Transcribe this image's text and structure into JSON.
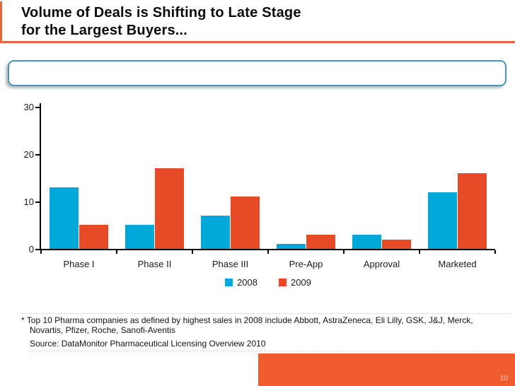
{
  "slide": {
    "title": "Volume of Deals is Shifting to Late Stage\nfor the Largest Buyers...",
    "page_number": "10",
    "footnote_line1": "* Top 10 Pharma companies as defined by highest sales in 2008 include Abbott, AstraZeneca, Eli Lilly, GSK, J&J, Merck, Novartis, Pfizer, Roche, Sanofi-Aventis",
    "footnote_source": "Source: DataMonitor Pharmaceutical Licensing Overview 2010"
  },
  "colors": {
    "accent_orange": "#E26740",
    "footer_bar_orange": "#F05C2E",
    "series_2008_blue": "#00A9D8",
    "series_2009_orange": "#E74A26",
    "placeholder_border_teal": "#4695B5"
  },
  "chart_data": {
    "type": "bar",
    "title": "",
    "xlabel": "",
    "ylabel": "",
    "categories": [
      "Phase I",
      "Phase II",
      "Phase III",
      "Pre-App",
      "Approval",
      "Marketed"
    ],
    "series": [
      {
        "name": "2008",
        "color": "#00A9D8",
        "values": [
          13,
          5,
          7,
          1,
          3,
          12
        ]
      },
      {
        "name": "2009",
        "color": "#E74A26",
        "values": [
          5,
          17,
          11,
          3,
          2,
          16
        ]
      }
    ],
    "ylim": [
      0,
      30
    ],
    "yticks": [
      0,
      10,
      20,
      30
    ],
    "grid": false,
    "legend_position": "bottom"
  }
}
